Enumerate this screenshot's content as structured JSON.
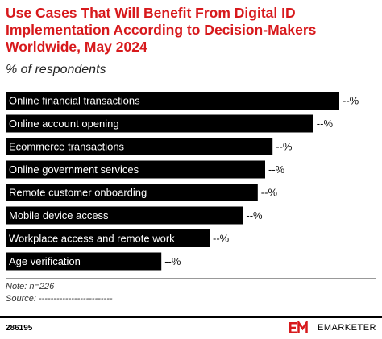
{
  "header": {
    "title": "Use Cases That Will Benefit From Digital ID Implementation According to Decision-Makers Worldwide, May 2024",
    "subtitle": "% of respondents"
  },
  "chart_data": {
    "type": "bar",
    "orientation": "horizontal",
    "title": "Use Cases That Will Benefit From Digital ID Implementation According to Decision-Makers Worldwide, May 2024",
    "subtitle": "% of respondents",
    "categories": [
      "Online financial transactions",
      "Online account opening",
      "Ecommerce transactions",
      "Online government services",
      "Remote customer onboarding",
      "Mobile device access",
      "Workplace access and remote work",
      "Age verification"
    ],
    "values": [
      90,
      83,
      72,
      70,
      68,
      64,
      55,
      42
    ],
    "value_labels": [
      "--%",
      "--%",
      "--%",
      "--%",
      "--%",
      "--%",
      "--%",
      "--%"
    ],
    "bar_color": "#000000",
    "label_color": "#ffffff",
    "xlim": [
      0,
      100
    ],
    "grid": false
  },
  "notes": {
    "note": "Note: n=226",
    "source": "Source: -------------------------"
  },
  "footer": {
    "chart_id": "286195",
    "brand_mark": "EM",
    "brand_name": "EMARKETER",
    "accent_color": "#d7191c"
  }
}
